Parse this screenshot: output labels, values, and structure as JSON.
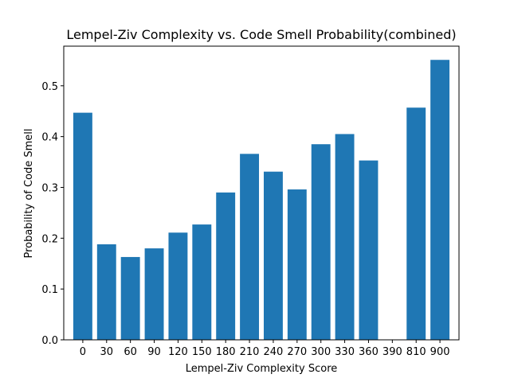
{
  "chart_data": {
    "type": "bar",
    "title": "Lempel-Ziv Complexity vs. Code Smell Probability(combined)",
    "xlabel": "Lempel-Ziv Complexity Score",
    "ylabel": "Probability of Code Smell",
    "categories": [
      "0",
      "30",
      "60",
      "90",
      "120",
      "150",
      "180",
      "210",
      "240",
      "270",
      "300",
      "330",
      "360",
      "390",
      "810",
      "900"
    ],
    "values": [
      0.447,
      0.188,
      0.163,
      0.18,
      0.211,
      0.227,
      0.29,
      0.366,
      0.331,
      0.296,
      0.385,
      0.405,
      0.353,
      0.0,
      0.457,
      0.551
    ],
    "ylim": [
      0,
      0.578
    ],
    "yticks": [
      "0.0",
      "0.1",
      "0.2",
      "0.3",
      "0.4",
      "0.5"
    ],
    "grid": false,
    "bar_color": "#1f77b4"
  }
}
